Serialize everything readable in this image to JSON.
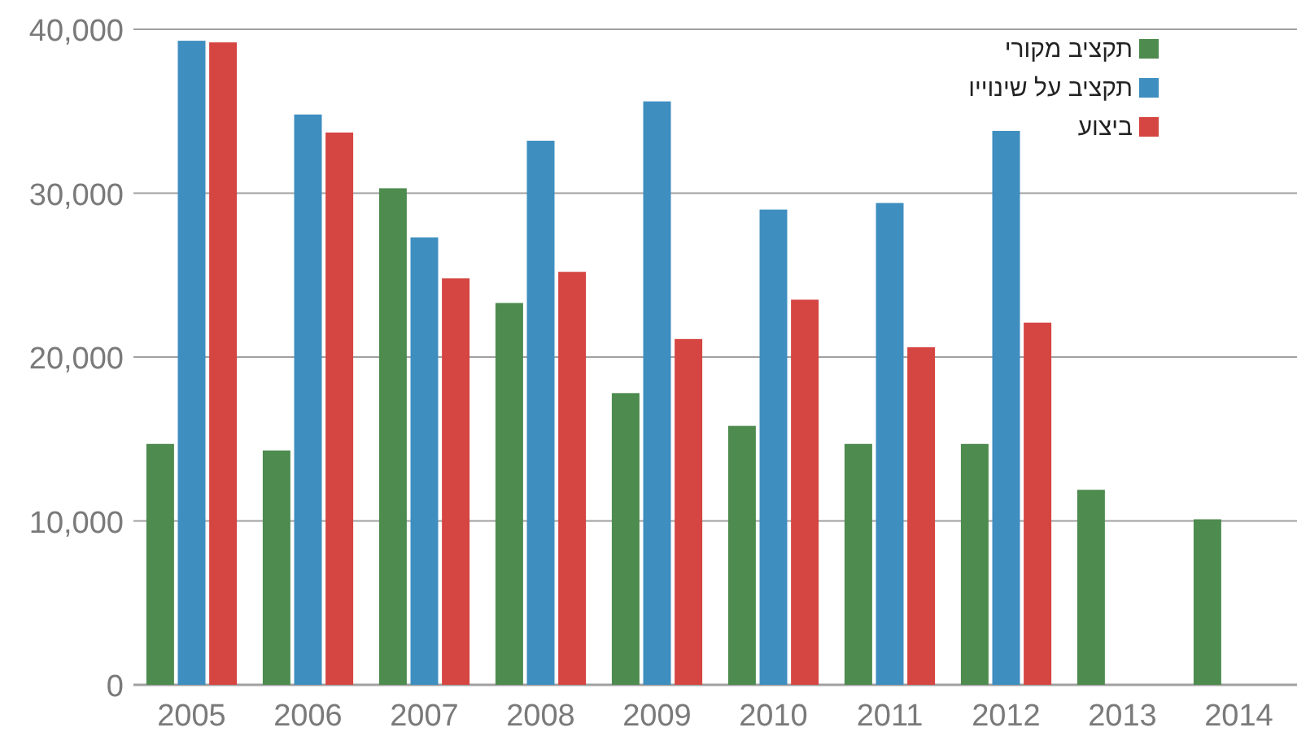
{
  "chart_data": {
    "type": "bar",
    "categories": [
      "2005",
      "2006",
      "2007",
      "2008",
      "2009",
      "2010",
      "2011",
      "2012",
      "2013",
      "2014"
    ],
    "series": [
      {
        "name": "תקציב מקורי",
        "color": "#4d8b4e",
        "values": [
          14700,
          14300,
          30300,
          23300,
          17800,
          15800,
          14700,
          14700,
          11900,
          10100
        ]
      },
      {
        "name": "תקציב על שינוייו",
        "color": "#3e8ebf",
        "values": [
          39300,
          34800,
          27300,
          33200,
          35600,
          29000,
          29400,
          33800,
          null,
          null
        ]
      },
      {
        "name": "ביצוע",
        "color": "#d54541",
        "values": [
          39200,
          33700,
          24800,
          25200,
          21100,
          23500,
          20600,
          22100,
          null,
          null
        ]
      }
    ],
    "ylim": [
      0,
      40000
    ],
    "yticks": [
      {
        "value": 0,
        "label": "0"
      },
      {
        "value": 10000,
        "label": "10,000"
      },
      {
        "value": 20000,
        "label": "20,000"
      },
      {
        "value": 30000,
        "label": "30,000"
      },
      {
        "value": 40000,
        "label": "40,000"
      }
    ],
    "grid": "y",
    "legend": "top right"
  }
}
